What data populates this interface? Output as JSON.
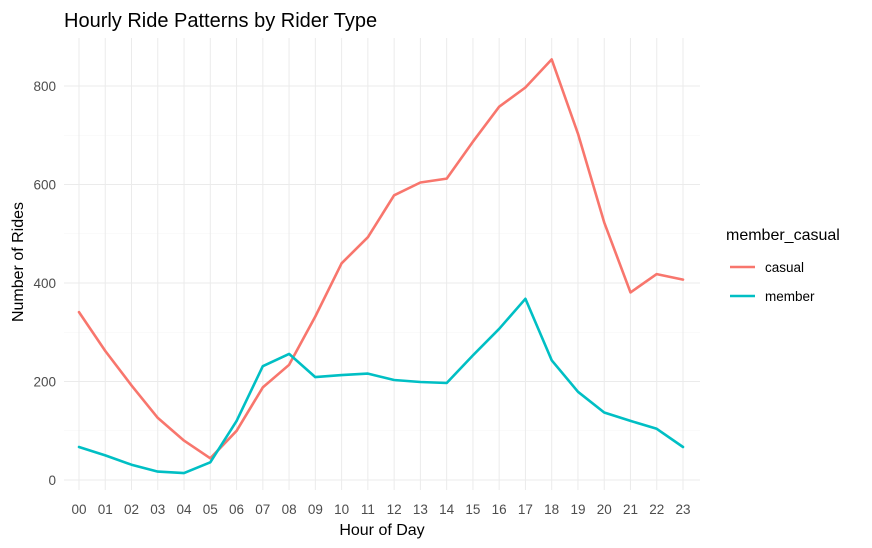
{
  "chart_data": {
    "type": "line",
    "title": "Hourly Ride Patterns by Rider Type",
    "xlabel": "Hour of Day",
    "ylabel": "Number of Rides",
    "categories": [
      "00",
      "01",
      "02",
      "03",
      "04",
      "05",
      "06",
      "07",
      "08",
      "09",
      "10",
      "11",
      "12",
      "13",
      "14",
      "15",
      "16",
      "17",
      "18",
      "19",
      "20",
      "21",
      "22",
      "23"
    ],
    "ylim": [
      0,
      880
    ],
    "yticks": [
      0,
      200,
      400,
      600,
      800
    ],
    "grid": true,
    "legend": {
      "title": "member_casual",
      "position": "right"
    },
    "series": [
      {
        "name": "casual",
        "color": "#F8766D",
        "values": [
          341,
          262,
          192,
          126,
          80,
          44,
          100,
          188,
          234,
          332,
          440,
          493,
          578,
          604,
          612,
          687,
          758,
          797,
          854,
          703,
          523,
          381,
          418,
          407
        ]
      },
      {
        "name": "member",
        "color": "#00BFC4",
        "values": [
          67,
          50,
          31,
          17,
          14,
          36,
          120,
          231,
          256,
          209,
          213,
          216,
          203,
          199,
          197,
          253,
          307,
          368,
          243,
          179,
          137,
          120,
          104,
          67
        ]
      }
    ]
  }
}
